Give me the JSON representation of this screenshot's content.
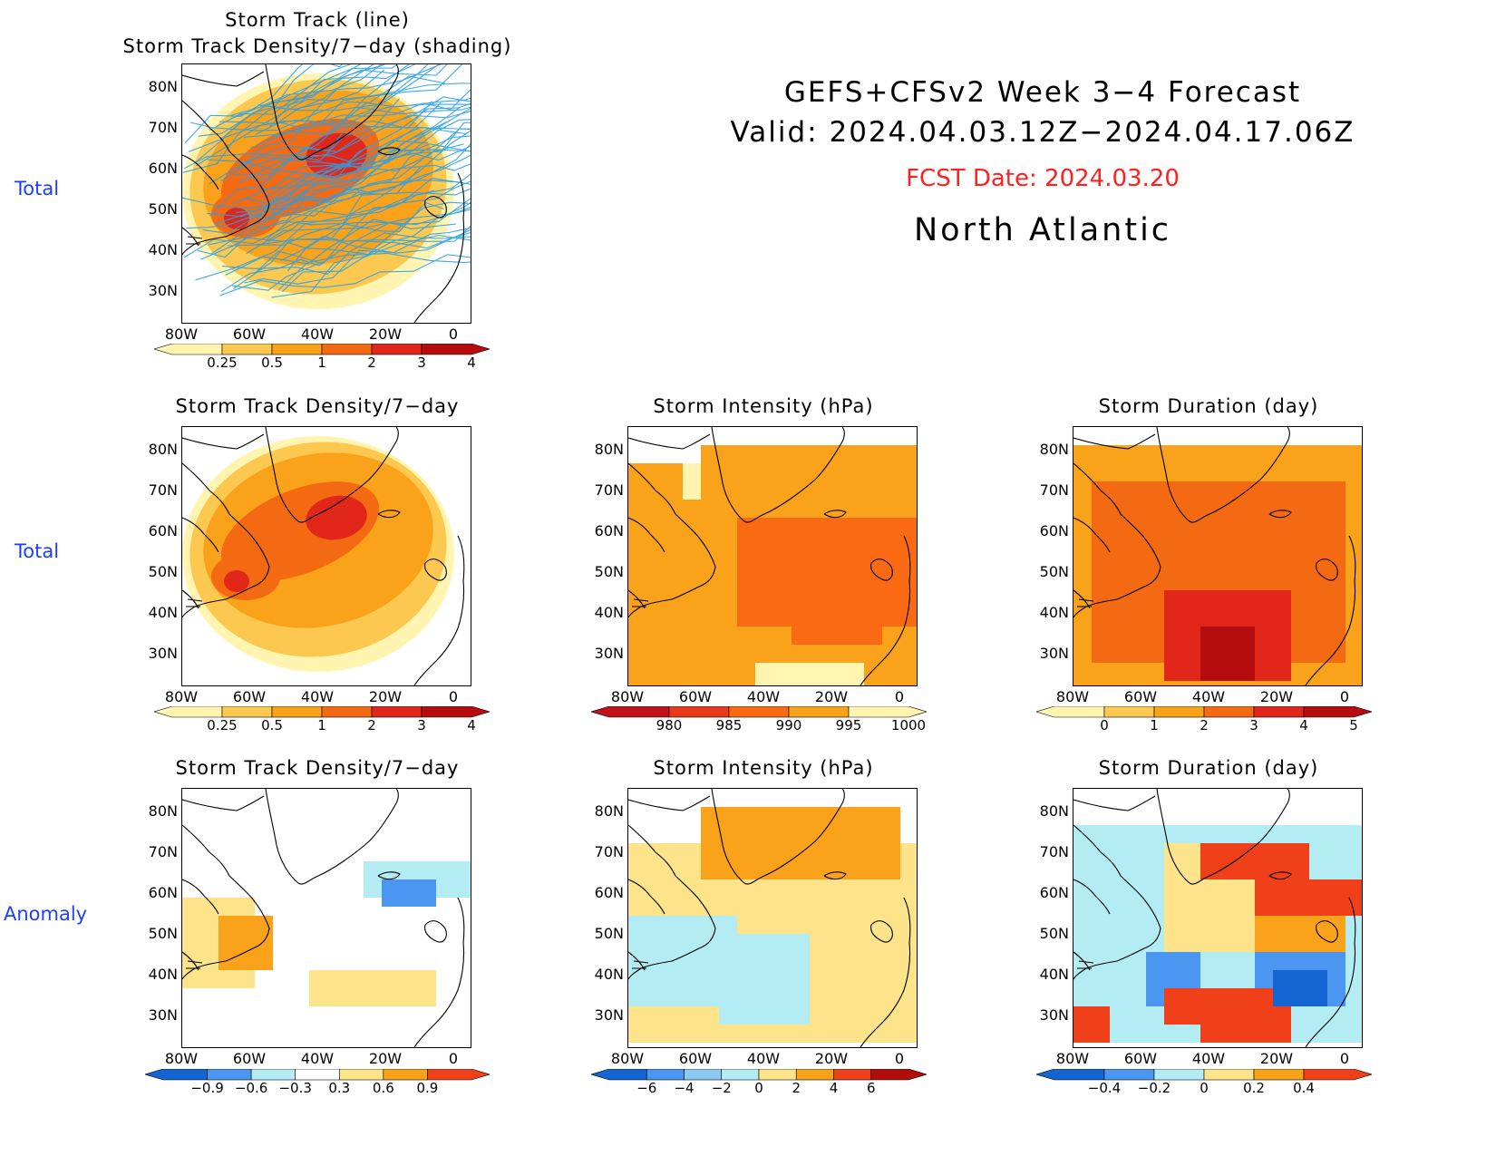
{
  "header": {
    "title_line1": "GEFS+CFSv2 Week 3−4 Forecast",
    "title_line2": "Valid: 2024.04.03.12Z−2024.04.17.06Z",
    "fcst_date": "FCST Date: 2024.03.20",
    "region": "North Atlantic"
  },
  "row_labels": {
    "row1": "Total",
    "row2": "Total",
    "row3": "Anomaly"
  },
  "axes": {
    "lat_labels": [
      "80N",
      "70N",
      "60N",
      "50N",
      "40N",
      "30N"
    ],
    "lon_labels": [
      "80W",
      "60W",
      "40W",
      "20W",
      "0"
    ]
  },
  "panels": {
    "p1": {
      "title1": "Storm Track (line)",
      "title2": "Storm Track Density/7−day (shading)"
    },
    "p2": {
      "title": "Storm Track Density/7−day"
    },
    "p3": {
      "title": "Storm Intensity (hPa)"
    },
    "p4": {
      "title": "Storm Duration (day)"
    },
    "p5": {
      "title": "Storm Track Density/7−day"
    },
    "p6": {
      "title": "Storm Intensity (hPa)"
    },
    "p7": {
      "title": "Storm Duration (day)"
    }
  },
  "colorbars": {
    "density": {
      "labels": [
        "0.25",
        "0.5",
        "1",
        "2",
        "3",
        "4"
      ],
      "colors": [
        "#fff4b0",
        "#fdc850",
        "#f9a21a",
        "#f46a12",
        "#e0271a",
        "#b50d0d"
      ]
    },
    "intensity": {
      "labels": [
        "980",
        "985",
        "990",
        "995",
        "1000"
      ],
      "colors": [
        "#c0121a",
        "#e63a1a",
        "#f96a12",
        "#f9a21a",
        "#fff4b0"
      ]
    },
    "duration": {
      "labels": [
        "0",
        "1",
        "2",
        "3",
        "4",
        "5"
      ],
      "colors": [
        "#fff4b0",
        "#fdc850",
        "#f9a21a",
        "#f46a12",
        "#e0271a",
        "#b50d0d"
      ]
    },
    "density_anom": {
      "labels": [
        "−0.9",
        "−0.6",
        "−0.3",
        "0.3",
        "0.6",
        "0.9"
      ],
      "colors": [
        "#1464d2",
        "#4a96f0",
        "#b4ecf4",
        "#ffffff",
        "#fde48a",
        "#f9a21a",
        "#f0401a"
      ]
    },
    "intensity_anom": {
      "labels": [
        "−6",
        "−4",
        "−2",
        "0",
        "2",
        "4",
        "6"
      ],
      "colors": [
        "#1464d2",
        "#4a96f0",
        "#8cc8f4",
        "#b4ecf4",
        "#fde48a",
        "#f9a21a",
        "#f0401a",
        "#b00d0d"
      ]
    },
    "duration_anom": {
      "labels": [
        "−0.4",
        "−0.2",
        "0",
        "0.2",
        "0.4"
      ],
      "colors": [
        "#1464d2",
        "#4a96f0",
        "#b4ecf4",
        "#fde48a",
        "#f9a21a",
        "#f0401a"
      ]
    }
  }
}
